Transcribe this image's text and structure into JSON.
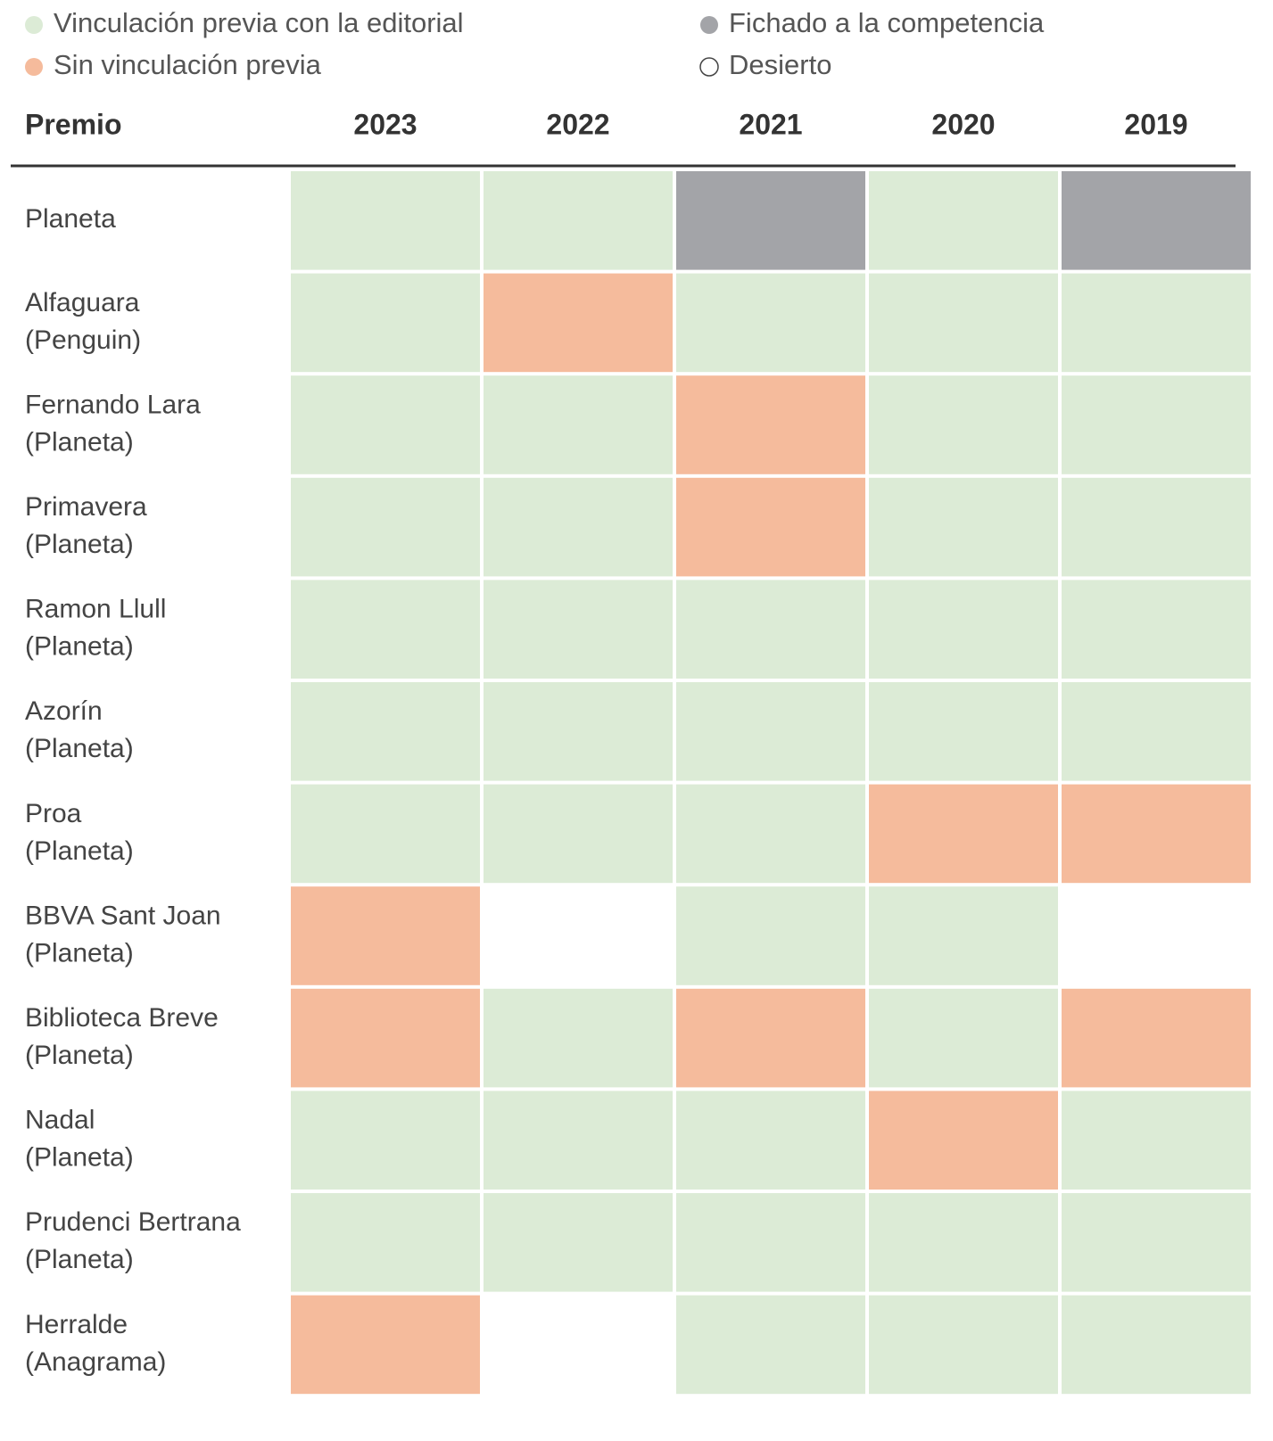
{
  "legend": [
    {
      "label": "Vinculación previa con la editorial",
      "color": "#dcebd6"
    },
    {
      "label": "Sin vinculación previa",
      "color": "#f5bb9c"
    },
    {
      "label": "Fichado a la competencia",
      "color": "#a3a4a8"
    },
    {
      "label": "Desierto",
      "color": "#ffffff"
    }
  ],
  "table": {
    "header": [
      "Premio",
      "2023",
      "2022",
      "2021",
      "2020",
      "2019"
    ],
    "rows": [
      {
        "label": [
          "Planeta"
        ],
        "cells": [
          "#dcebd6",
          "#dcebd6",
          "#a3a4a8",
          "#dcebd6",
          "#a3a4a8"
        ]
      },
      {
        "label": [
          "Alfaguara",
          "(Penguin)"
        ],
        "cells": [
          "#dcebd6",
          "#f5bb9c",
          "#dcebd6",
          "#dcebd6",
          "#dcebd6"
        ]
      },
      {
        "label": [
          "Fernando Lara",
          "(Planeta)"
        ],
        "cells": [
          "#dcebd6",
          "#dcebd6",
          "#f5bb9c",
          "#dcebd6",
          "#dcebd6"
        ]
      },
      {
        "label": [
          "Primavera",
          "(Planeta)"
        ],
        "cells": [
          "#dcebd6",
          "#dcebd6",
          "#f5bb9c",
          "#dcebd6",
          "#dcebd6"
        ]
      },
      {
        "label": [
          "Ramon Llull",
          "(Planeta)"
        ],
        "cells": [
          "#dcebd6",
          "#dcebd6",
          "#dcebd6",
          "#dcebd6",
          "#dcebd6"
        ]
      },
      {
        "label": [
          "Azorín",
          "(Planeta)"
        ],
        "cells": [
          "#dcebd6",
          "#dcebd6",
          "#dcebd6",
          "#dcebd6",
          "#dcebd6"
        ]
      },
      {
        "label": [
          "Proa",
          "(Planeta)"
        ],
        "cells": [
          "#dcebd6",
          "#dcebd6",
          "#dcebd6",
          "#f5bb9c",
          "#f5bb9c"
        ]
      },
      {
        "label": [
          "BBVA Sant Joan",
          "(Planeta)"
        ],
        "cells": [
          "#f5bb9c",
          "#ffffff",
          "#dcebd6",
          "#dcebd6",
          "#ffffff"
        ]
      },
      {
        "label": [
          "Biblioteca Breve",
          "(Planeta)"
        ],
        "cells": [
          "#f5bb9c",
          "#dcebd6",
          "#f5bb9c",
          "#dcebd6",
          "#f5bb9c"
        ]
      },
      {
        "label": [
          "Nadal",
          "(Planeta)"
        ],
        "cells": [
          "#dcebd6",
          "#dcebd6",
          "#dcebd6",
          "#f5bb9c",
          "#dcebd6"
        ]
      },
      {
        "label": [
          "Prudenci Bertrana",
          "(Planeta)"
        ],
        "cells": [
          "#dcebd6",
          "#dcebd6",
          "#dcebd6",
          "#dcebd6",
          "#dcebd6"
        ]
      },
      {
        "label": [
          "Herralde",
          "(Anagrama)"
        ],
        "cells": [
          "#f5bb9c",
          "#ffffff",
          "#dcebd6",
          "#dcebd6",
          "#dcebd6"
        ]
      }
    ]
  }
}
